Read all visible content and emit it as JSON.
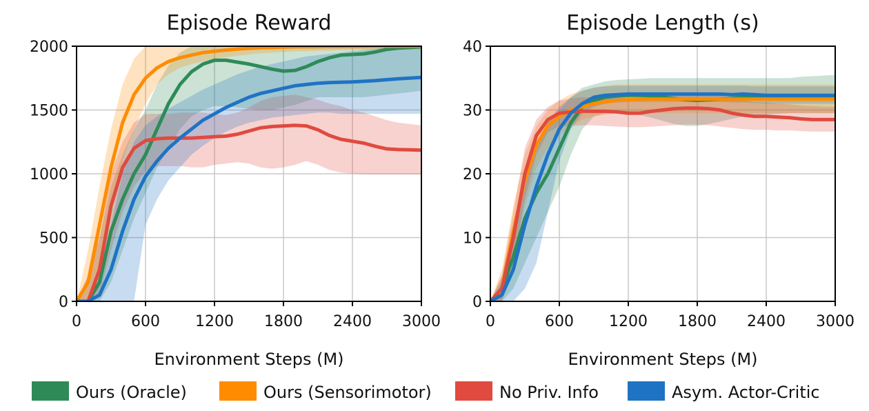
{
  "chart_data": [
    {
      "type": "line",
      "title": "Episode Reward",
      "xlabel": "Environment Steps (M)",
      "ylabel": "",
      "xlim": [
        0,
        3000
      ],
      "ylim": [
        0,
        2000
      ],
      "xticks": [
        0,
        600,
        1200,
        1800,
        2400,
        3000
      ],
      "yticks": [
        0,
        500,
        1000,
        1500,
        2000
      ],
      "x": [
        0,
        100,
        200,
        300,
        400,
        500,
        600,
        700,
        800,
        900,
        1000,
        1100,
        1200,
        1300,
        1400,
        1500,
        1600,
        1700,
        1800,
        1900,
        2000,
        2100,
        2200,
        2300,
        2400,
        2500,
        2600,
        2700,
        2800,
        2900,
        3000
      ],
      "series": [
        {
          "name": "Ours (Oracle)",
          "color": "#2e8b57",
          "values": [
            0,
            0,
            150,
            550,
            800,
            1000,
            1150,
            1350,
            1550,
            1700,
            1800,
            1860,
            1890,
            1890,
            1875,
            1860,
            1840,
            1820,
            1805,
            1810,
            1840,
            1880,
            1910,
            1930,
            1935,
            1940,
            1955,
            1975,
            1985,
            1990,
            1995
          ],
          "lower": [
            0,
            0,
            0,
            150,
            400,
            650,
            850,
            1050,
            1200,
            1350,
            1450,
            1500,
            1530,
            1530,
            1520,
            1510,
            1500,
            1500,
            1520,
            1540,
            1570,
            1600,
            1600,
            1600,
            1600,
            1600,
            1610,
            1620,
            1630,
            1640,
            1650
          ],
          "upper": [
            0,
            200,
            500,
            900,
            1150,
            1350,
            1500,
            1700,
            1850,
            1950,
            2000,
            2000,
            2000,
            2000,
            2000,
            2000,
            2000,
            2000,
            2000,
            2000,
            2000,
            2000,
            2000,
            2000,
            2000,
            2000,
            2000,
            2000,
            2000,
            2000,
            2000
          ]
        },
        {
          "name": "Ours (Sensorimotor)",
          "color": "#ff8c00",
          "values": [
            0,
            150,
            600,
            1050,
            1400,
            1620,
            1750,
            1830,
            1880,
            1910,
            1930,
            1950,
            1960,
            1970,
            1978,
            1983,
            1988,
            1990,
            1993,
            1995,
            1996,
            1997,
            1998,
            1998,
            1999,
            1999,
            2000,
            2000,
            2000,
            2000,
            2000
          ],
          "lower": [
            0,
            0,
            300,
            750,
            1100,
            1350,
            1550,
            1700,
            1780,
            1830,
            1860,
            1880,
            1900,
            1915,
            1925,
            1935,
            1945,
            1950,
            1955,
            1960,
            1960,
            1965,
            1965,
            1970,
            1970,
            1970,
            1975,
            1975,
            1975,
            1975,
            1975
          ],
          "upper": [
            0,
            400,
            900,
            1350,
            1700,
            1900,
            2000,
            2000,
            2000,
            2000,
            2000,
            2000,
            2000,
            2000,
            2000,
            2000,
            2000,
            2000,
            2000,
            2000,
            2000,
            2000,
            2000,
            2000,
            2000,
            2000,
            2000,
            2000,
            2000,
            2000,
            2000
          ]
        },
        {
          "name": "No Priv. Info",
          "color": "#e04a3f",
          "values": [
            0,
            0,
            250,
            750,
            1050,
            1200,
            1260,
            1275,
            1280,
            1280,
            1280,
            1285,
            1290,
            1295,
            1310,
            1335,
            1360,
            1370,
            1375,
            1380,
            1375,
            1345,
            1300,
            1270,
            1255,
            1240,
            1215,
            1195,
            1190,
            1188,
            1185
          ],
          "lower": [
            0,
            0,
            50,
            400,
            700,
            900,
            1020,
            1060,
            1060,
            1060,
            1050,
            1050,
            1070,
            1080,
            1090,
            1080,
            1050,
            1040,
            1050,
            1070,
            1100,
            1070,
            1030,
            1010,
            1000,
            995,
            995,
            995,
            995,
            995,
            995
          ],
          "upper": [
            0,
            200,
            500,
            1000,
            1250,
            1400,
            1470,
            1470,
            1470,
            1480,
            1480,
            1480,
            1470,
            1460,
            1480,
            1520,
            1570,
            1600,
            1610,
            1620,
            1600,
            1580,
            1550,
            1530,
            1500,
            1480,
            1450,
            1420,
            1400,
            1390,
            1380
          ]
        },
        {
          "name": "Asym. Actor-Critic",
          "color": "#1f73c4",
          "values": [
            0,
            0,
            50,
            250,
            550,
            800,
            980,
            1100,
            1200,
            1280,
            1350,
            1420,
            1470,
            1520,
            1560,
            1600,
            1630,
            1650,
            1670,
            1690,
            1700,
            1710,
            1715,
            1718,
            1720,
            1725,
            1730,
            1738,
            1745,
            1750,
            1755
          ],
          "lower": [
            0,
            0,
            0,
            0,
            0,
            0,
            600,
            800,
            950,
            1050,
            1150,
            1220,
            1280,
            1330,
            1370,
            1400,
            1420,
            1440,
            1450,
            1460,
            1470,
            1480,
            1480,
            1470,
            1470,
            1470,
            1470,
            1470,
            1470,
            1470,
            1470
          ],
          "upper": [
            0,
            0,
            200,
            600,
            1000,
            1250,
            1380,
            1450,
            1510,
            1560,
            1610,
            1660,
            1700,
            1740,
            1780,
            1810,
            1840,
            1860,
            1880,
            1900,
            1920,
            1930,
            1940,
            1950,
            1960,
            1970,
            1980,
            1990,
            2000,
            2000,
            2000
          ]
        }
      ]
    },
    {
      "type": "line",
      "title": "Episode Length (s)",
      "xlabel": "Environment Steps (M)",
      "ylabel": "",
      "xlim": [
        0,
        3000
      ],
      "ylim": [
        0,
        40
      ],
      "xticks": [
        0,
        600,
        1200,
        1800,
        2400,
        3000
      ],
      "yticks": [
        0,
        10,
        20,
        30,
        40
      ],
      "x": [
        0,
        100,
        200,
        300,
        400,
        500,
        600,
        700,
        800,
        900,
        1000,
        1100,
        1200,
        1300,
        1400,
        1500,
        1600,
        1700,
        1800,
        1900,
        2000,
        2100,
        2200,
        2300,
        2400,
        2500,
        2600,
        2700,
        2800,
        2900,
        3000
      ],
      "series": [
        {
          "name": "Ours (Oracle)",
          "color": "#2e8b57",
          "values": [
            0,
            2,
            7,
            13,
            17,
            20,
            24,
            28,
            30.5,
            31.5,
            32,
            32.2,
            32.3,
            32.3,
            32.2,
            32,
            31.8,
            31.6,
            31.5,
            31.6,
            31.7,
            31.8,
            32,
            32,
            32,
            32,
            32,
            32,
            32,
            32,
            32
          ],
          "lower": [
            0,
            0,
            2,
            6,
            10,
            14,
            18,
            23,
            27,
            29,
            29.5,
            29.5,
            29.5,
            29.2,
            28.8,
            28.3,
            27.8,
            27.5,
            27.5,
            27.8,
            28.2,
            28.6,
            29,
            29.2,
            29.3,
            29.4,
            29.5,
            29.5,
            29.5,
            29.5,
            29.5
          ],
          "upper": [
            0,
            4,
            12,
            20,
            25,
            28,
            30,
            32,
            33.5,
            34,
            34.5,
            34.7,
            34.8,
            34.9,
            35,
            35,
            35,
            35,
            35,
            35,
            35,
            35,
            35,
            35,
            35,
            35,
            35,
            35.2,
            35.3,
            35.4,
            35.5
          ]
        },
        {
          "name": "Ours (Sensorimotor)",
          "color": "#ff8c00",
          "values": [
            0,
            2,
            11,
            19,
            24.5,
            27.5,
            29,
            30,
            30.5,
            31,
            31.3,
            31.5,
            31.6,
            31.7,
            31.7,
            31.7,
            31.7,
            31.7,
            31.7,
            31.7,
            31.7,
            31.7,
            31.7,
            31.7,
            31.7,
            31.7,
            31.7,
            31.7,
            31.7,
            31.7,
            31.7
          ],
          "lower": [
            0,
            0,
            7,
            15,
            21,
            24,
            26,
            27.5,
            28.5,
            29,
            29.3,
            29.5,
            29.5,
            29.5,
            29.5,
            29.5,
            29.5,
            29.5,
            29.5,
            29.5,
            29.5,
            29.5,
            29.5,
            29.5,
            29.5,
            29.5,
            29.5,
            29.5,
            29.5,
            29.5,
            29.5
          ],
          "upper": [
            0,
            5,
            15,
            23,
            27.5,
            30,
            31.5,
            32.5,
            33,
            33.5,
            33.8,
            34,
            34,
            34,
            34,
            34,
            34,
            34,
            34,
            34,
            34,
            34,
            34,
            34,
            34,
            34,
            34,
            34,
            34,
            34,
            34
          ]
        },
        {
          "name": "No Priv. Info",
          "color": "#e04a3f",
          "values": [
            0,
            2,
            10,
            20,
            26,
            28.5,
            29.5,
            29.7,
            29.8,
            29.8,
            29.8,
            29.7,
            29.5,
            29.5,
            29.8,
            30,
            30.2,
            30.3,
            30.3,
            30.2,
            30,
            29.5,
            29.2,
            29,
            29,
            28.9,
            28.8,
            28.6,
            28.5,
            28.5,
            28.5
          ],
          "lower": [
            0,
            0,
            6,
            16,
            23,
            26.5,
            27.5,
            27.5,
            27.6,
            27.6,
            27.5,
            27.4,
            27.3,
            27.3,
            27.4,
            27.5,
            27.6,
            27.7,
            27.7,
            27.6,
            27.4,
            27.2,
            27,
            26.9,
            26.9,
            26.8,
            26.8,
            26.7,
            26.6,
            26.6,
            26.6
          ],
          "upper": [
            0,
            4,
            14,
            24,
            28.5,
            30.5,
            31.5,
            31.8,
            32,
            32,
            32,
            32,
            31.8,
            31.8,
            32,
            32.3,
            32.5,
            32.6,
            32.6,
            32.5,
            32.3,
            31.8,
            31.5,
            31.2,
            31.1,
            31,
            30.9,
            30.7,
            30.6,
            30.5,
            30.5
          ]
        },
        {
          "name": "Asym. Actor-Critic",
          "color": "#1f73c4",
          "values": [
            0,
            1,
            5,
            12,
            18,
            23,
            27,
            29.5,
            31,
            32,
            32.3,
            32.4,
            32.5,
            32.5,
            32.5,
            32.5,
            32.5,
            32.5,
            32.5,
            32.5,
            32.5,
            32.4,
            32.5,
            32.4,
            32.3,
            32.3,
            32.3,
            32.3,
            32.3,
            32.3,
            32.3
          ],
          "lower": [
            0,
            0,
            0,
            2,
            6,
            14,
            22,
            27,
            29.5,
            30.5,
            31,
            31.2,
            31.3,
            31.3,
            31.3,
            31.3,
            31.3,
            31.3,
            31.3,
            31.3,
            31.3,
            31.2,
            31.2,
            31.1,
            31,
            31,
            31,
            31,
            31,
            31,
            31
          ],
          "upper": [
            0,
            3,
            10,
            18,
            24,
            28,
            30.5,
            32,
            33,
            33.5,
            33.7,
            33.8,
            33.8,
            33.8,
            33.8,
            33.8,
            33.8,
            33.8,
            33.8,
            33.8,
            33.8,
            33.8,
            33.8,
            33.7,
            33.7,
            33.7,
            33.7,
            33.7,
            33.7,
            33.7,
            33.7
          ]
        }
      ]
    }
  ],
  "legend": [
    {
      "label": "Ours (Oracle)",
      "color": "#2e8b57"
    },
    {
      "label": "Ours (Sensorimotor)",
      "color": "#ff8c00"
    },
    {
      "label": "No Priv. Info",
      "color": "#e04a3f"
    },
    {
      "label": "Asym. Actor-Critic",
      "color": "#1f73c4"
    }
  ]
}
